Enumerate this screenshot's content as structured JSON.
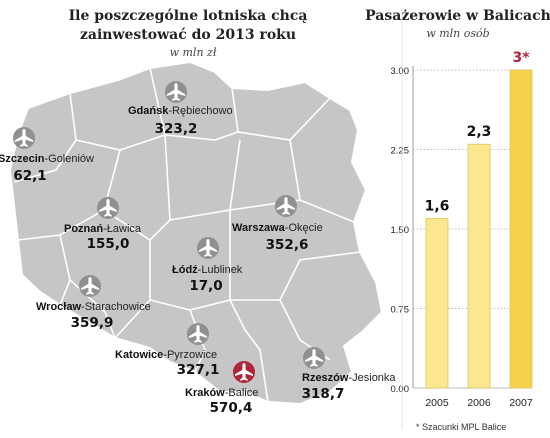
{
  "map_section": {
    "title_line1": "Ile poszczególne lotniska chcą",
    "title_line2": "zainwestować do 2013 roku",
    "unit": "w mln zł"
  },
  "bar_section": {
    "title": "Pasażerowie w Balicach",
    "unit": "w mln osób",
    "footnote": "* Szacunki MPL Balice"
  },
  "colors": {
    "map_fill": "#c6c6c6",
    "map_border": "#ffffff",
    "plane_icon": "#909090",
    "highlight": "#b0253a",
    "bar_fill": "#fbe78f",
    "bar_highlight": "#f6d24c",
    "bar_stroke": "#e0c460",
    "grid": "#aaaaaa"
  },
  "chart_data": [
    {
      "type": "table",
      "title": "Ile poszczególne lotniska chcą zainwestować do 2013 roku",
      "unit": "w mln zł",
      "rows": [
        {
          "main": "Gdańsk",
          "sub": "-Rębiechowo",
          "value": "323,2",
          "icon": "airplane-icon",
          "highlight": false
        },
        {
          "main": "Szczecin",
          "sub": "-Goleniów",
          "value": "62,1",
          "icon": "airplane-icon",
          "highlight": false
        },
        {
          "main": "Poznań",
          "sub": "-Ławica",
          "value": "155,0",
          "icon": "airplane-icon",
          "highlight": false
        },
        {
          "main": "Warszawa",
          "sub": "-Okęcie",
          "value": "352,6",
          "icon": "airplane-icon",
          "highlight": false
        },
        {
          "main": "Łódź",
          "sub": "-Lublinek",
          "value": "17,0",
          "icon": "airplane-icon",
          "highlight": false
        },
        {
          "main": "Wrocław",
          "sub": "-Starachowice",
          "value": "359,9",
          "icon": "airplane-icon",
          "highlight": false
        },
        {
          "main": "Katowice",
          "sub": "-Pyrzowice",
          "value": "327,1",
          "icon": "airplane-icon",
          "highlight": false
        },
        {
          "main": "Kraków",
          "sub": "-Balice",
          "value": "570,4",
          "icon": "airplane-icon",
          "highlight": true
        },
        {
          "main": "Rzeszów",
          "sub": "-Jesionka",
          "value": "318,7",
          "icon": "airplane-icon",
          "highlight": false
        }
      ]
    },
    {
      "type": "bar",
      "title": "Pasażerowie w Balicach",
      "unit": "w mln osób",
      "categories": [
        "2005",
        "2006",
        "2007"
      ],
      "values": [
        1.6,
        2.3,
        3.0
      ],
      "value_labels": [
        "1,6",
        "2,3",
        "3*"
      ],
      "yticks": [
        "0.00",
        "0.75",
        "1.50",
        "2.25",
        "3.00"
      ],
      "ylim": [
        0,
        3.0
      ],
      "grid": true,
      "highlight_index": 2
    }
  ]
}
